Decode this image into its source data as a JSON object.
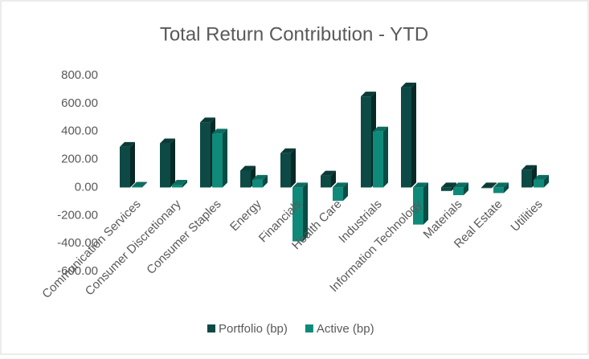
{
  "chart_data": {
    "type": "bar3d",
    "title": "Total Return Contribution - YTD",
    "categories": [
      "Communication Services",
      "Consumer Discretionary",
      "Consumer Staples",
      "Energy",
      "Financials",
      "Health Care",
      "Industrials",
      "Information Technology",
      "Materials",
      "Real Estate",
      "Utilities"
    ],
    "series": [
      {
        "name": "Portfolio (bp)",
        "color": "#0d4a45",
        "values": [
          290,
          315,
          465,
          120,
          245,
          85,
          650,
          715,
          -25,
          -5,
          125
        ]
      },
      {
        "name": "Active (bp)",
        "color": "#0f8a7a",
        "values": [
          5,
          20,
          385,
          55,
          -385,
          -95,
          400,
          -265,
          -55,
          -40,
          55
        ]
      }
    ],
    "ylim": [
      -600,
      800
    ],
    "yticks": [
      {
        "value": -600,
        "label": "-600.00"
      },
      {
        "value": -400,
        "label": "-400.00"
      },
      {
        "value": -200,
        "label": "-200.00"
      },
      {
        "value": 0,
        "label": "0.00"
      },
      {
        "value": 200,
        "label": "200.00"
      },
      {
        "value": 400,
        "label": "400.00"
      },
      {
        "value": 600,
        "label": "600.00"
      },
      {
        "value": 800,
        "label": "800.00"
      }
    ],
    "grid": false,
    "legend": "bottom"
  }
}
